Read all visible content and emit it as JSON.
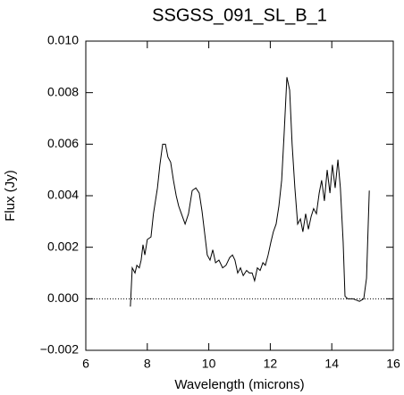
{
  "chart_data": {
    "type": "line",
    "title": "SSGSS_091_SL_B_1",
    "x_label": "Wavelength (microns)",
    "y_label": "Flux (Jy)",
    "x": [
      7.45,
      7.51,
      7.6,
      7.66,
      7.74,
      7.8,
      7.86,
      7.92,
      8.0,
      8.12,
      8.2,
      8.33,
      8.41,
      8.5,
      8.59,
      8.67,
      8.76,
      8.85,
      8.94,
      9.02,
      9.11,
      9.23,
      9.34,
      9.46,
      9.58,
      9.69,
      9.78,
      9.87,
      9.95,
      10.04,
      10.13,
      10.22,
      10.33,
      10.45,
      10.56,
      10.68,
      10.77,
      10.85,
      10.94,
      11.03,
      11.12,
      11.23,
      11.32,
      11.41,
      11.49,
      11.58,
      11.67,
      11.76,
      11.84,
      11.93,
      12.02,
      12.1,
      12.19,
      12.28,
      12.37,
      12.45,
      12.54,
      12.63,
      12.71,
      12.8,
      12.89,
      12.98,
      13.06,
      13.15,
      13.24,
      13.33,
      13.41,
      13.5,
      13.59,
      13.67,
      13.76,
      13.85,
      13.94,
      14.02,
      14.11,
      14.2,
      14.28,
      14.37,
      14.43,
      14.52,
      14.69,
      14.9,
      15.04,
      15.13,
      15.22
    ],
    "series": [
      {
        "name": "SSGSS_091_SL_B_1",
        "color": "#000000",
        "values": [
          -0.0003,
          0.0012,
          0.001,
          0.0013,
          0.0012,
          0.0015,
          0.0021,
          0.0017,
          0.0023,
          0.0024,
          0.0033,
          0.0043,
          0.0052,
          0.006,
          0.006,
          0.0055,
          0.0053,
          0.0046,
          0.004,
          0.0036,
          0.0033,
          0.0029,
          0.0033,
          0.0042,
          0.0043,
          0.0041,
          0.0034,
          0.0025,
          0.0017,
          0.0015,
          0.0019,
          0.0014,
          0.0015,
          0.0012,
          0.0013,
          0.0016,
          0.0017,
          0.0015,
          0.001,
          0.0012,
          0.0009,
          0.0011,
          0.001,
          0.001,
          0.0007,
          0.0012,
          0.0011,
          0.0014,
          0.0013,
          0.0017,
          0.0022,
          0.0026,
          0.0029,
          0.0036,
          0.0046,
          0.0064,
          0.0086,
          0.0081,
          0.006,
          0.0043,
          0.0029,
          0.0031,
          0.0026,
          0.0033,
          0.0027,
          0.0032,
          0.0035,
          0.0033,
          0.0041,
          0.0046,
          0.0038,
          0.005,
          0.0041,
          0.0052,
          0.0043,
          0.0054,
          0.0043,
          0.0022,
          0.0001,
          0.0,
          0.0,
          -0.0001,
          0.0,
          0.0008,
          0.0042
        ]
      }
    ],
    "reference_line": 0,
    "xlim": [
      6,
      16
    ],
    "xticks": [
      6,
      8,
      10,
      12,
      14,
      16
    ],
    "ylim": [
      -0.002,
      0.01
    ],
    "yticks": [
      {
        "value": -0.002,
        "label": "−0.002"
      },
      {
        "value": 0,
        "label": "0.000"
      },
      {
        "value": 0.002,
        "label": "0.002"
      },
      {
        "value": 0.004,
        "label": "0.004"
      },
      {
        "value": 0.006,
        "label": "0.006"
      },
      {
        "value": 0.008,
        "label": "0.008"
      },
      {
        "value": 0.01,
        "label": "0.010"
      }
    ]
  }
}
